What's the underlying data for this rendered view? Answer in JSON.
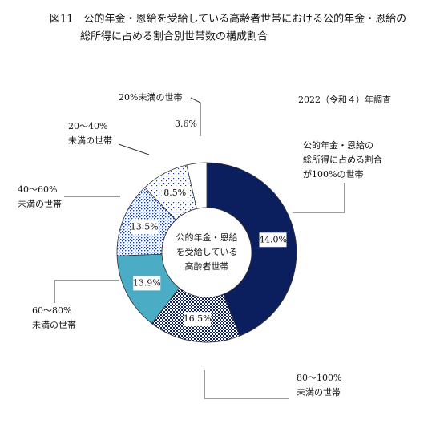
{
  "chart_data": {
    "type": "donut",
    "title": [
      "図11　公的年金・恩給を受給している高齢者世帯における公的年金・恩給の",
      "総所得に占める割合別世帯数の構成割合"
    ],
    "subtitle": "2022（令和４）年調査",
    "center_label": [
      "公的年金・恩給",
      "を受給している",
      "高齢者世帯"
    ],
    "categories": [
      [
        "公的年金・恩給の",
        "総所得に占める割合",
        "が100%の世帯"
      ],
      [
        "80～100%",
        "未満の世帯"
      ],
      [
        "60～80%",
        "未満の世帯"
      ],
      [
        "40～60%",
        "未満の世帯"
      ],
      [
        "20～40%",
        "未満の世帯"
      ],
      [
        "20%未満の世帯"
      ]
    ],
    "values": [
      44.0,
      16.5,
      13.9,
      13.5,
      8.5,
      3.6
    ],
    "value_labels": [
      "44.0%",
      "16.5%",
      "13.9%",
      "13.5%",
      "8.5%",
      "3.6%"
    ],
    "colors": [
      "#0b1f5e",
      "#0b1f5e",
      "#4bacc6",
      "#1f3f8a",
      "#1f3f8a",
      "#ffffff"
    ],
    "patterns": [
      "solid",
      "checker",
      "solid",
      "dense-dots",
      "sparse-dots",
      "solid"
    ]
  }
}
